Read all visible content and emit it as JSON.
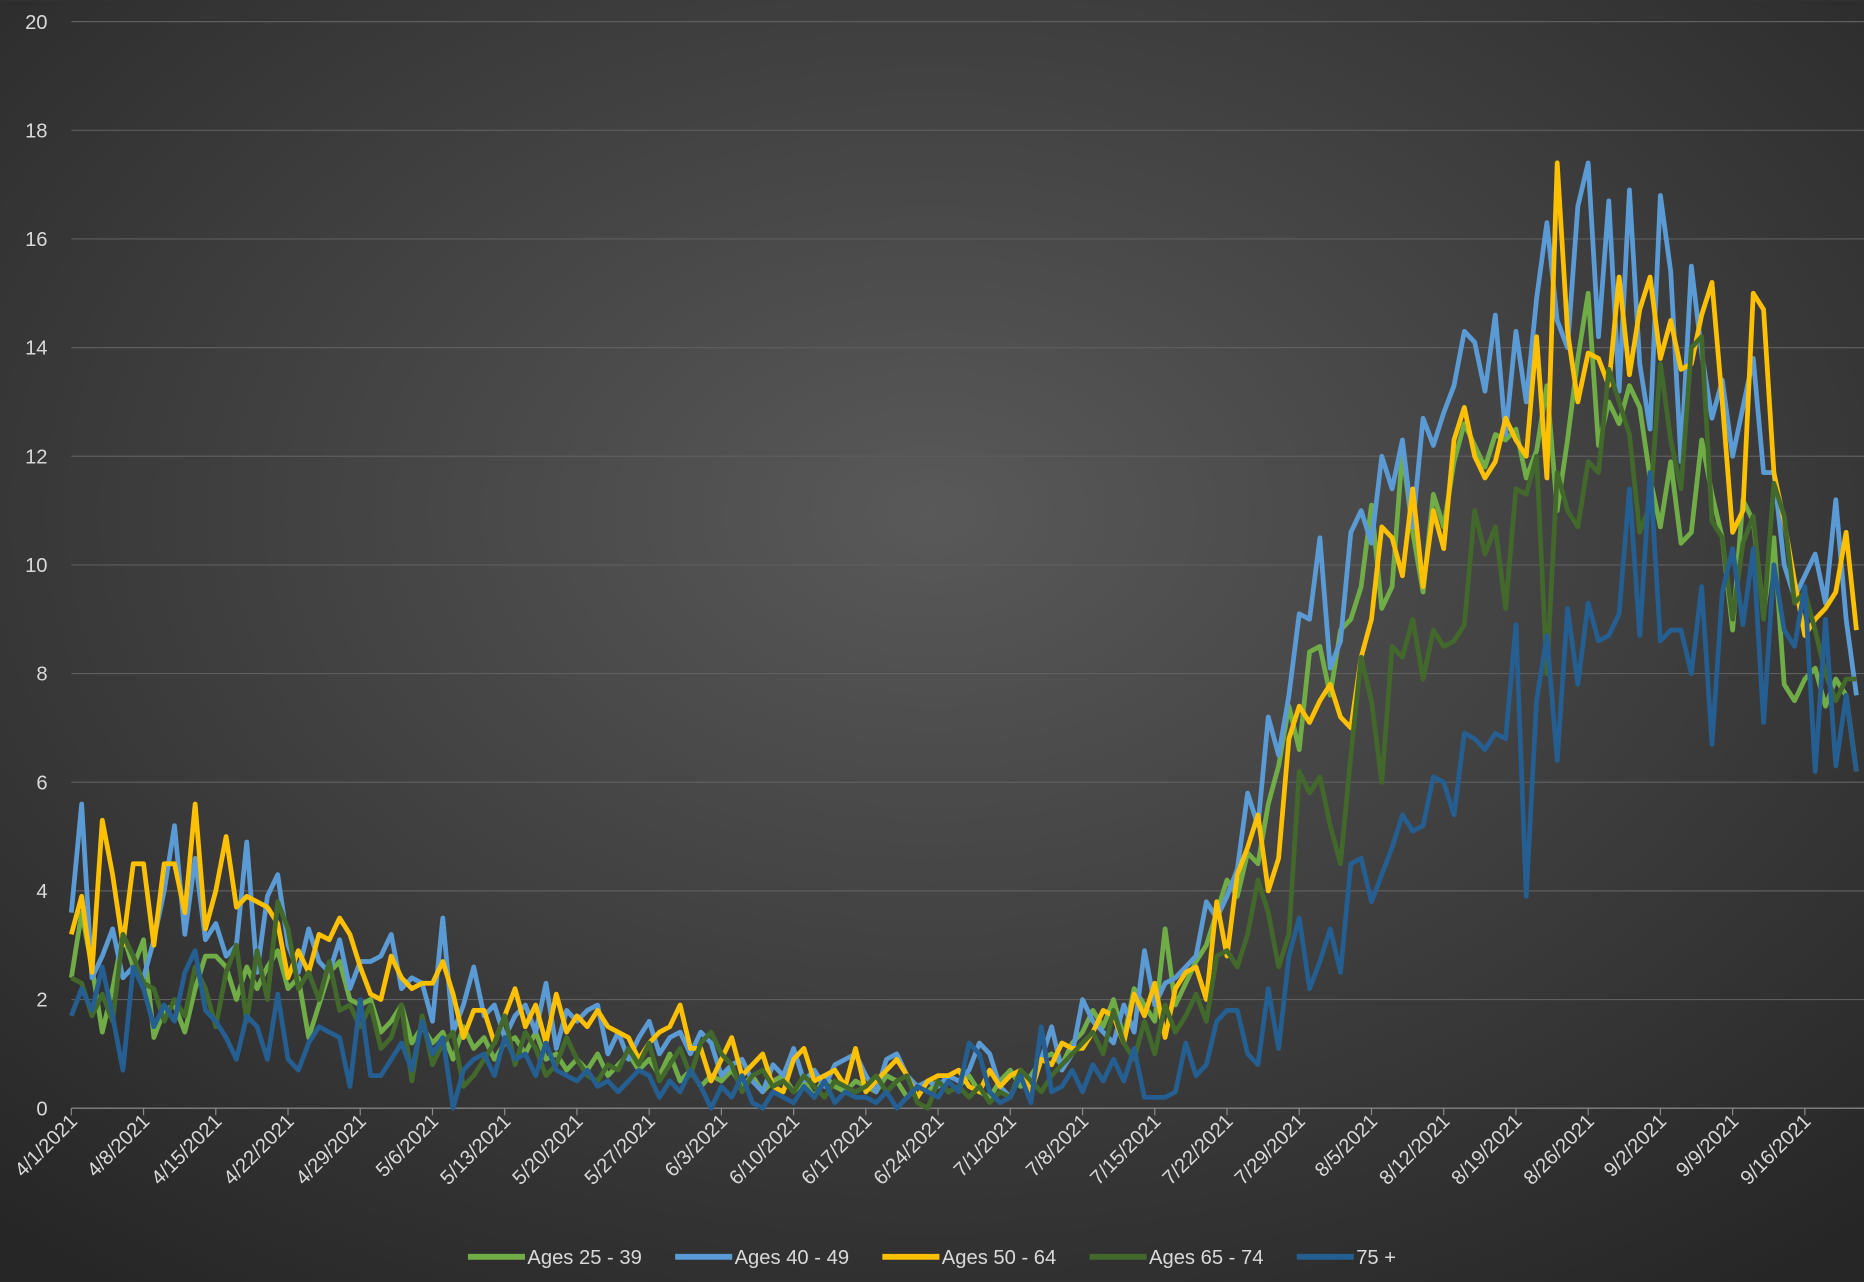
{
  "chart_data": {
    "type": "line",
    "categories": [
      "4/1/2021",
      null,
      null,
      null,
      null,
      null,
      null,
      "4/8/2021",
      null,
      null,
      null,
      null,
      null,
      null,
      "4/15/2021",
      null,
      null,
      null,
      null,
      null,
      null,
      "4/22/2021",
      null,
      null,
      null,
      null,
      null,
      null,
      "4/29/2021",
      null,
      null,
      null,
      null,
      null,
      null,
      "5/6/2021",
      null,
      null,
      null,
      null,
      null,
      null,
      "5/13/2021",
      null,
      null,
      null,
      null,
      null,
      null,
      "5/20/2021",
      null,
      null,
      null,
      null,
      null,
      null,
      "5/27/2021",
      null,
      null,
      null,
      null,
      null,
      null,
      "6/3/2021",
      null,
      null,
      null,
      null,
      null,
      null,
      "6/10/2021",
      null,
      null,
      null,
      null,
      null,
      null,
      "6/17/2021",
      null,
      null,
      null,
      null,
      null,
      null,
      "6/24/2021",
      null,
      null,
      null,
      null,
      null,
      null,
      "7/1/2021",
      null,
      null,
      null,
      null,
      null,
      null,
      "7/8/2021",
      null,
      null,
      null,
      null,
      null,
      null,
      "7/15/2021",
      null,
      null,
      null,
      null,
      null,
      null,
      "7/22/2021",
      null,
      null,
      null,
      null,
      null,
      null,
      "7/29/2021",
      null,
      null,
      null,
      null,
      null,
      null,
      "8/5/2021",
      null,
      null,
      null,
      null,
      null,
      null,
      "8/12/2021",
      null,
      null,
      null,
      null,
      null,
      null,
      "8/19/2021",
      null,
      null,
      null,
      null,
      null,
      null,
      "8/26/2021",
      null,
      null,
      null,
      null,
      null,
      null,
      "9/2/2021",
      null,
      null,
      null,
      null,
      null,
      null,
      "9/9/2021",
      null,
      null,
      null,
      null,
      null,
      null,
      "9/16/2021",
      null,
      null,
      null,
      null,
      null
    ],
    "series": [
      {
        "name": "Ages 25 - 39",
        "color": "#70ad47",
        "values": [
          2.4,
          3.6,
          2.6,
          1.4,
          2.2,
          3.2,
          2.6,
          3.1,
          1.3,
          1.8,
          1.9,
          1.4,
          2.2,
          2.8,
          2.8,
          2.6,
          2.0,
          2.6,
          2.2,
          2.6,
          2.9,
          2.2,
          2.4,
          1.3,
          1.9,
          2.5,
          2.7,
          2.0,
          1.9,
          2.0,
          1.4,
          1.6,
          1.9,
          1.2,
          1.5,
          1.2,
          1.4,
          0.9,
          1.5,
          1.1,
          1.3,
          0.9,
          1.2,
          1.3,
          1.0,
          1.4,
          0.9,
          1.0,
          0.7,
          0.9,
          0.7,
          1.0,
          0.6,
          0.8,
          1.0,
          0.7,
          0.9,
          0.6,
          1.0,
          0.5,
          0.7,
          0.4,
          0.6,
          0.5,
          0.7,
          0.4,
          0.6,
          0.3,
          0.5,
          0.6,
          0.3,
          0.5,
          0.2,
          0.6,
          0.4,
          0.3,
          0.5,
          0.4,
          0.3,
          0.6,
          0.5,
          0.2,
          0.4,
          0.3,
          0.5,
          0.3,
          0.4,
          0.6,
          0.3,
          0.2,
          0.5,
          0.7,
          0.4,
          0.6,
          0.9,
          1.0,
          0.8,
          1.2,
          1.4,
          1.8,
          1.5,
          2.0,
          1.3,
          2.2,
          1.9,
          1.6,
          3.3,
          1.9,
          2.3,
          2.7,
          3.0,
          3.6,
          4.2,
          3.9,
          4.7,
          4.5,
          5.6,
          6.3,
          7.4,
          6.6,
          8.4,
          8.5,
          7.6,
          8.8,
          9.0,
          9.6,
          11.1,
          9.2,
          9.6,
          12.1,
          10.6,
          9.5,
          11.3,
          10.7,
          11.9,
          12.6,
          12.2,
          11.8,
          12.4,
          12.3,
          12.5,
          11.6,
          12.1,
          13.3,
          11.0,
          12.3,
          13.8,
          15.0,
          12.2,
          13.0,
          12.6,
          13.3,
          12.9,
          11.6,
          10.7,
          11.9,
          10.4,
          10.6,
          12.3,
          11.3,
          10.5,
          8.8,
          11.2,
          10.8,
          9.1,
          10.5,
          7.8,
          7.5,
          7.9,
          8.1,
          7.4,
          7.9,
          7.6,
          6.2
        ]
      },
      {
        "name": "Ages 40 - 49",
        "color": "#5b9bd5",
        "values": [
          3.6,
          5.6,
          2.4,
          2.8,
          3.3,
          2.4,
          2.6,
          2.4,
          3.1,
          4.0,
          5.2,
          3.2,
          4.6,
          3.1,
          3.4,
          2.8,
          3.0,
          4.9,
          2.5,
          3.9,
          4.3,
          3.0,
          2.5,
          3.3,
          2.7,
          2.5,
          3.1,
          2.2,
          2.7,
          2.7,
          2.8,
          3.2,
          2.2,
          2.4,
          2.3,
          1.6,
          3.5,
          1.4,
          1.9,
          2.6,
          1.7,
          1.9,
          1.3,
          1.7,
          1.9,
          1.4,
          2.3,
          1.1,
          1.8,
          1.6,
          1.8,
          1.9,
          1.0,
          1.4,
          0.9,
          1.3,
          1.6,
          1.0,
          1.3,
          1.4,
          1.0,
          1.4,
          1.2,
          0.6,
          0.8,
          0.9,
          0.5,
          0.3,
          0.8,
          0.6,
          1.1,
          0.5,
          0.7,
          0.4,
          0.8,
          0.9,
          1.0,
          0.6,
          0.3,
          0.9,
          1.0,
          0.6,
          0.4,
          0.5,
          0.4,
          0.6,
          0.5,
          0.7,
          1.2,
          1.0,
          0.4,
          0.2,
          0.7,
          0.5,
          0.9,
          1.5,
          0.7,
          1.0,
          2.0,
          1.6,
          1.4,
          1.2,
          1.9,
          1.4,
          2.9,
          1.9,
          2.3,
          2.4,
          2.6,
          2.8,
          3.8,
          3.5,
          3.9,
          4.4,
          5.8,
          5.2,
          7.2,
          6.5,
          7.6,
          9.1,
          9.0,
          10.5,
          8.1,
          8.6,
          10.6,
          11.0,
          10.4,
          12.0,
          11.4,
          12.3,
          10.7,
          12.7,
          12.2,
          12.8,
          13.3,
          14.3,
          14.1,
          13.2,
          14.6,
          12.4,
          14.3,
          13.0,
          14.9,
          16.3,
          14.5,
          14.0,
          16.6,
          17.4,
          14.2,
          16.7,
          13.2,
          16.9,
          13.7,
          12.5,
          16.8,
          15.4,
          11.9,
          15.5,
          13.9,
          12.7,
          13.4,
          12.0,
          12.9,
          13.8,
          11.7,
          11.7,
          10.0,
          9.4,
          9.8,
          10.2,
          9.3,
          11.2,
          9.0,
          7.6
        ]
      },
      {
        "name": "Ages 50 - 64",
        "color": "#ffc000",
        "values": [
          3.2,
          3.9,
          2.5,
          5.3,
          4.3,
          3.0,
          4.5,
          4.5,
          3.0,
          4.5,
          4.5,
          3.6,
          5.6,
          3.3,
          4.0,
          5.0,
          3.7,
          3.9,
          3.8,
          3.7,
          3.4,
          2.4,
          2.9,
          2.5,
          3.2,
          3.1,
          3.5,
          3.2,
          2.6,
          2.1,
          2.0,
          2.8,
          2.4,
          2.2,
          2.3,
          2.3,
          2.7,
          2.1,
          1.3,
          1.8,
          1.8,
          1.2,
          1.7,
          2.2,
          1.5,
          1.9,
          1.2,
          2.1,
          1.4,
          1.7,
          1.5,
          1.8,
          1.5,
          1.4,
          1.3,
          0.9,
          1.2,
          1.4,
          1.5,
          1.9,
          1.1,
          1.1,
          0.5,
          0.9,
          1.3,
          0.6,
          0.8,
          1.0,
          0.4,
          0.3,
          0.9,
          1.1,
          0.5,
          0.6,
          0.7,
          0.4,
          1.1,
          0.3,
          0.5,
          0.7,
          0.9,
          0.6,
          0.2,
          0.5,
          0.6,
          0.6,
          0.7,
          0.4,
          0.3,
          0.7,
          0.4,
          0.6,
          0.7,
          0.3,
          0.9,
          0.8,
          1.2,
          1.1,
          1.1,
          1.4,
          1.8,
          1.7,
          1.2,
          2.1,
          1.7,
          2.3,
          1.3,
          2.2,
          2.5,
          2.6,
          2.0,
          3.8,
          2.8,
          4.3,
          4.8,
          5.4,
          4.0,
          4.6,
          6.8,
          7.4,
          7.1,
          7.5,
          7.8,
          7.2,
          7.0,
          8.3,
          9.0,
          10.7,
          10.5,
          9.8,
          11.4,
          9.6,
          11.0,
          10.3,
          12.3,
          12.9,
          12.0,
          11.6,
          11.9,
          12.7,
          12.3,
          12.0,
          14.2,
          11.6,
          17.4,
          14.3,
          13.0,
          13.9,
          13.8,
          13.3,
          15.3,
          13.5,
          14.7,
          15.3,
          13.8,
          14.5,
          13.6,
          13.7,
          14.6,
          15.2,
          13.0,
          10.6,
          11.0,
          15.0,
          14.7,
          11.7,
          10.8,
          9.7,
          8.7,
          9.0,
          9.2,
          9.5,
          10.6,
          8.8
        ]
      },
      {
        "name": "Ages 65 - 74",
        "color": "#43682b",
        "values": [
          2.4,
          2.3,
          1.7,
          2.1,
          1.6,
          3.2,
          2.8,
          2.3,
          2.2,
          1.6,
          2.0,
          1.7,
          2.6,
          2.2,
          1.5,
          2.5,
          3.0,
          1.6,
          2.9,
          2.0,
          3.8,
          3.3,
          2.2,
          2.5,
          2.0,
          2.7,
          1.8,
          1.9,
          1.5,
          1.9,
          1.1,
          1.3,
          1.9,
          0.5,
          1.7,
          0.8,
          1.2,
          1.4,
          0.4,
          0.6,
          0.9,
          1.2,
          1.7,
          0.8,
          1.4,
          1.1,
          0.6,
          0.8,
          1.3,
          0.9,
          0.6,
          0.5,
          0.8,
          0.7,
          1.1,
          0.8,
          1.2,
          0.5,
          0.8,
          1.1,
          0.6,
          1.2,
          1.4,
          1.0,
          0.8,
          0.3,
          0.6,
          0.7,
          0.4,
          0.5,
          0.3,
          0.6,
          0.4,
          0.2,
          0.5,
          0.4,
          0.3,
          0.4,
          0.6,
          0.3,
          0.5,
          0.6,
          0.1,
          0.0,
          0.5,
          0.3,
          0.4,
          0.2,
          0.4,
          0.1,
          0.3,
          0.2,
          0.7,
          0.5,
          0.3,
          0.6,
          0.8,
          1.0,
          1.2,
          1.4,
          1.0,
          1.8,
          1.2,
          0.9,
          1.6,
          1.0,
          1.9,
          1.4,
          1.7,
          2.1,
          1.6,
          2.8,
          2.9,
          2.6,
          3.2,
          4.2,
          3.6,
          2.6,
          3.2,
          6.2,
          5.8,
          6.1,
          5.2,
          4.5,
          6.5,
          8.3,
          7.5,
          6.0,
          8.5,
          8.3,
          9.0,
          7.9,
          8.8,
          8.5,
          8.6,
          8.9,
          11.0,
          10.2,
          10.7,
          9.2,
          11.4,
          11.3,
          12.0,
          8.0,
          11.7,
          11.0,
          10.7,
          11.9,
          11.7,
          13.6,
          13.0,
          12.4,
          10.6,
          11.1,
          13.7,
          12.3,
          11.4,
          14.0,
          14.2,
          10.8,
          10.5,
          9.0,
          10.4,
          10.9,
          9.0,
          11.5,
          10.9,
          9.3,
          9.5,
          8.8,
          8.0,
          7.5,
          7.9,
          7.9
        ]
      },
      {
        "name": "75 +",
        "color": "#255e91",
        "values": [
          1.7,
          2.2,
          1.8,
          2.6,
          1.7,
          0.7,
          2.6,
          2.2,
          1.5,
          1.9,
          1.6,
          2.5,
          2.9,
          1.8,
          1.6,
          1.3,
          0.9,
          1.7,
          1.5,
          0.9,
          2.1,
          0.9,
          0.7,
          1.2,
          1.5,
          1.4,
          1.3,
          0.4,
          2.0,
          0.6,
          0.6,
          0.9,
          1.2,
          0.7,
          1.6,
          1.0,
          1.3,
          0.0,
          0.7,
          0.9,
          1.0,
          0.6,
          1.3,
          0.9,
          1.0,
          0.6,
          1.2,
          0.7,
          0.6,
          0.5,
          0.7,
          0.4,
          0.5,
          0.3,
          0.5,
          0.7,
          0.6,
          0.2,
          0.5,
          0.3,
          0.7,
          0.4,
          0.0,
          0.4,
          0.2,
          0.6,
          0.1,
          0.0,
          0.3,
          0.2,
          0.1,
          0.4,
          0.2,
          0.5,
          0.1,
          0.3,
          0.2,
          0.2,
          0.1,
          0.3,
          0.0,
          0.2,
          0.4,
          0.3,
          0.2,
          0.5,
          0.3,
          1.2,
          1.0,
          0.3,
          0.1,
          0.2,
          0.6,
          0.1,
          1.5,
          0.3,
          0.4,
          0.7,
          0.3,
          0.8,
          0.5,
          0.9,
          0.5,
          1.1,
          0.2,
          0.2,
          0.2,
          0.3,
          1.2,
          0.6,
          0.8,
          1.6,
          1.8,
          1.8,
          1.0,
          0.8,
          2.2,
          1.1,
          2.8,
          3.5,
          2.2,
          2.7,
          3.3,
          2.5,
          4.5,
          4.6,
          3.8,
          4.3,
          4.8,
          5.4,
          5.1,
          5.2,
          6.1,
          6.0,
          5.4,
          6.9,
          6.8,
          6.6,
          6.9,
          6.8,
          8.9,
          3.9,
          7.5,
          8.7,
          6.4,
          9.2,
          7.8,
          9.3,
          8.6,
          8.7,
          9.1,
          11.4,
          8.7,
          11.7,
          8.6,
          8.8,
          8.8,
          8.0,
          9.6,
          6.7,
          9.5,
          10.3,
          8.9,
          10.3,
          7.1,
          10.0,
          8.8,
          8.5,
          9.6,
          6.2,
          9.0,
          6.3,
          7.6,
          6.2
        ]
      }
    ],
    "ylim": [
      0,
      20
    ],
    "yticks": [
      0,
      2,
      4,
      6,
      8,
      10,
      12,
      14,
      16,
      18,
      20
    ],
    "grid": true,
    "legend": "bottom"
  }
}
